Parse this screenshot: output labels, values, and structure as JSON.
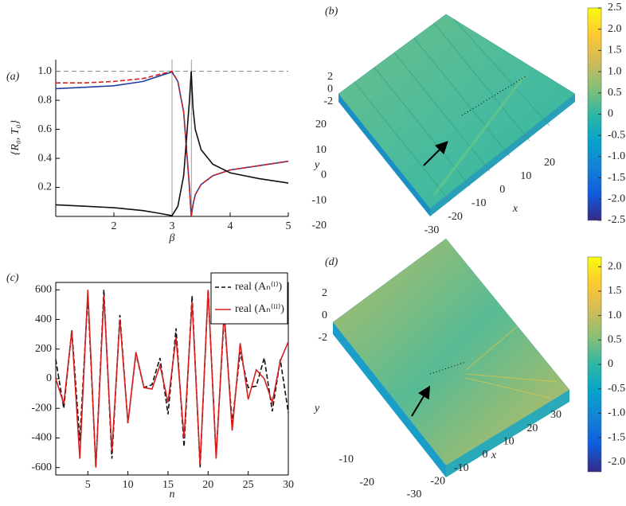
{
  "chart_data": [
    {
      "type": "line",
      "panel_label": "(a)",
      "xlabel": "β",
      "ylabel": "{R₀, T₀}",
      "x": [
        1,
        1.5,
        2,
        2.5,
        2.8,
        3,
        3.1,
        3.2,
        3.3,
        3.33,
        3.36,
        3.4,
        3.5,
        3.7,
        4,
        4.5,
        5
      ],
      "series": [
        {
          "color": "#1f3f9f",
          "dash": false,
          "values": [
            0.88,
            0.89,
            0.9,
            0.93,
            0.97,
            0.995,
            0.93,
            0.72,
            0.2,
            0,
            0.08,
            0.15,
            0.22,
            0.28,
            0.32,
            0.35,
            0.38
          ]
        },
        {
          "color": "#d62020",
          "dash": true,
          "values": [
            0.92,
            0.92,
            0.93,
            0.95,
            0.98,
            1.0,
            0.93,
            0.72,
            0.2,
            0,
            0.08,
            0.15,
            0.22,
            0.28,
            0.32,
            0.35,
            0.38
          ]
        },
        {
          "color": "#111111",
          "dash": false,
          "values": [
            0.08,
            0.07,
            0.06,
            0.04,
            0.02,
            0.005,
            0.07,
            0.28,
            0.8,
            1.0,
            0.75,
            0.6,
            0.46,
            0.36,
            0.3,
            0.26,
            0.23
          ]
        }
      ],
      "hlines": [
        1
      ],
      "vlines": [
        3,
        3.333
      ],
      "box": false,
      "xlim": [
        1,
        5
      ],
      "ylim": [
        0,
        1.08
      ],
      "xticks": [
        2,
        3,
        4,
        5
      ],
      "yticks": [
        0.2,
        0.4,
        0.6,
        0.8,
        {
          "value": 1.0,
          "label": "1.0"
        }
      ]
    },
    {
      "type": "surface",
      "panel_label": "(b)",
      "xlabel": "x",
      "ylabel": "y",
      "xlim": [
        -30,
        20
      ],
      "ylim": [
        -20,
        20
      ],
      "zlim": [
        -2,
        2
      ],
      "xticks": [
        -30,
        -20,
        -10,
        0,
        10,
        20
      ],
      "yticks": [
        -20,
        -10,
        0,
        10,
        20
      ],
      "zticks": [
        -2,
        0,
        2
      ],
      "clim": [
        -2.5,
        2.5
      ],
      "cticks": [
        {
          "value": -2.5,
          "label": "-2.5"
        },
        {
          "value": -2.0,
          "label": "-2.0"
        },
        {
          "value": -1.5,
          "label": "-1.5"
        },
        {
          "value": -1.0,
          "label": "-1.0"
        },
        -0.5,
        0,
        0.5,
        {
          "value": 1.0,
          "label": "1.0"
        },
        1.5,
        {
          "value": 2.0,
          "label": "2.0"
        },
        2.5
      ],
      "colormap": [
        "#352a87",
        "#0f5cdd",
        "#1481d6",
        "#06a4ca",
        "#2eb7a4",
        "#87bf77",
        "#d1bb59",
        "#fec832",
        "#f9fb0e"
      ]
    },
    {
      "type": "line",
      "panel_label": "(c)",
      "xlabel": "n",
      "box": true,
      "x": [
        1,
        2,
        3,
        4,
        5,
        6,
        7,
        8,
        9,
        10,
        11,
        12,
        13,
        14,
        15,
        16,
        17,
        18,
        19,
        20,
        21,
        22,
        23,
        24,
        25,
        26,
        27,
        28,
        29,
        30
      ],
      "series": [
        {
          "name": "real (Aₙ⁽ᴵ⁾)",
          "color": "#111111",
          "dash": true,
          "values": [
            130,
            -200,
            330,
            -420,
            560,
            -600,
            600,
            -540,
            430,
            -300,
            170,
            -60,
            -40,
            140,
            -240,
            340,
            -460,
            560,
            -600,
            600,
            -520,
            420,
            -300,
            180,
            -60,
            -50,
            140,
            -220,
            130,
            -230
          ]
        },
        {
          "name": "real (Aₙ⁽ᴵᴵ⁾)",
          "color": "#d62020",
          "dash": false,
          "values": [
            0,
            -170,
            320,
            -540,
            600,
            -600,
            560,
            -490,
            400,
            -300,
            180,
            -60,
            -70,
            90,
            -160,
            280,
            -400,
            520,
            -580,
            600,
            -540,
            460,
            -350,
            240,
            -140,
            60,
            0,
            -160,
            120,
            250
          ]
        }
      ],
      "hlines": [],
      "vlines": [],
      "xlim": [
        1,
        30
      ],
      "ylim": [
        -650,
        650
      ],
      "xticks": [
        5,
        10,
        15,
        20,
        25,
        30
      ],
      "yticks": [
        -600,
        -400,
        -200,
        0,
        200,
        400,
        600
      ]
    },
    {
      "type": "surface",
      "panel_label": "(d)",
      "xlabel": "x",
      "ylabel": "y",
      "xlim": [
        -30,
        30
      ],
      "ylim": [
        -20,
        20
      ],
      "zlim": [
        -2,
        2
      ],
      "xticks": [
        -30,
        -20,
        -10,
        0,
        10,
        20,
        30
      ],
      "yticks": [
        -20,
        -10
      ],
      "zticks": [
        -2,
        0,
        2
      ],
      "clim": [
        -2.2,
        2.2
      ],
      "cticks": [
        {
          "value": -2.0,
          "label": "-2.0"
        },
        -1.5,
        {
          "value": -1.0,
          "label": "-1.0"
        },
        -0.5,
        0,
        0.5,
        {
          "value": 1.0,
          "label": "1.0"
        },
        1.5,
        {
          "value": 2.0,
          "label": "2.0"
        }
      ],
      "colormap": [
        "#352a87",
        "#0f5cdd",
        "#1481d6",
        "#06a4ca",
        "#2eb7a4",
        "#87bf77",
        "#d1bb59",
        "#fec832",
        "#f9fb0e"
      ]
    }
  ]
}
